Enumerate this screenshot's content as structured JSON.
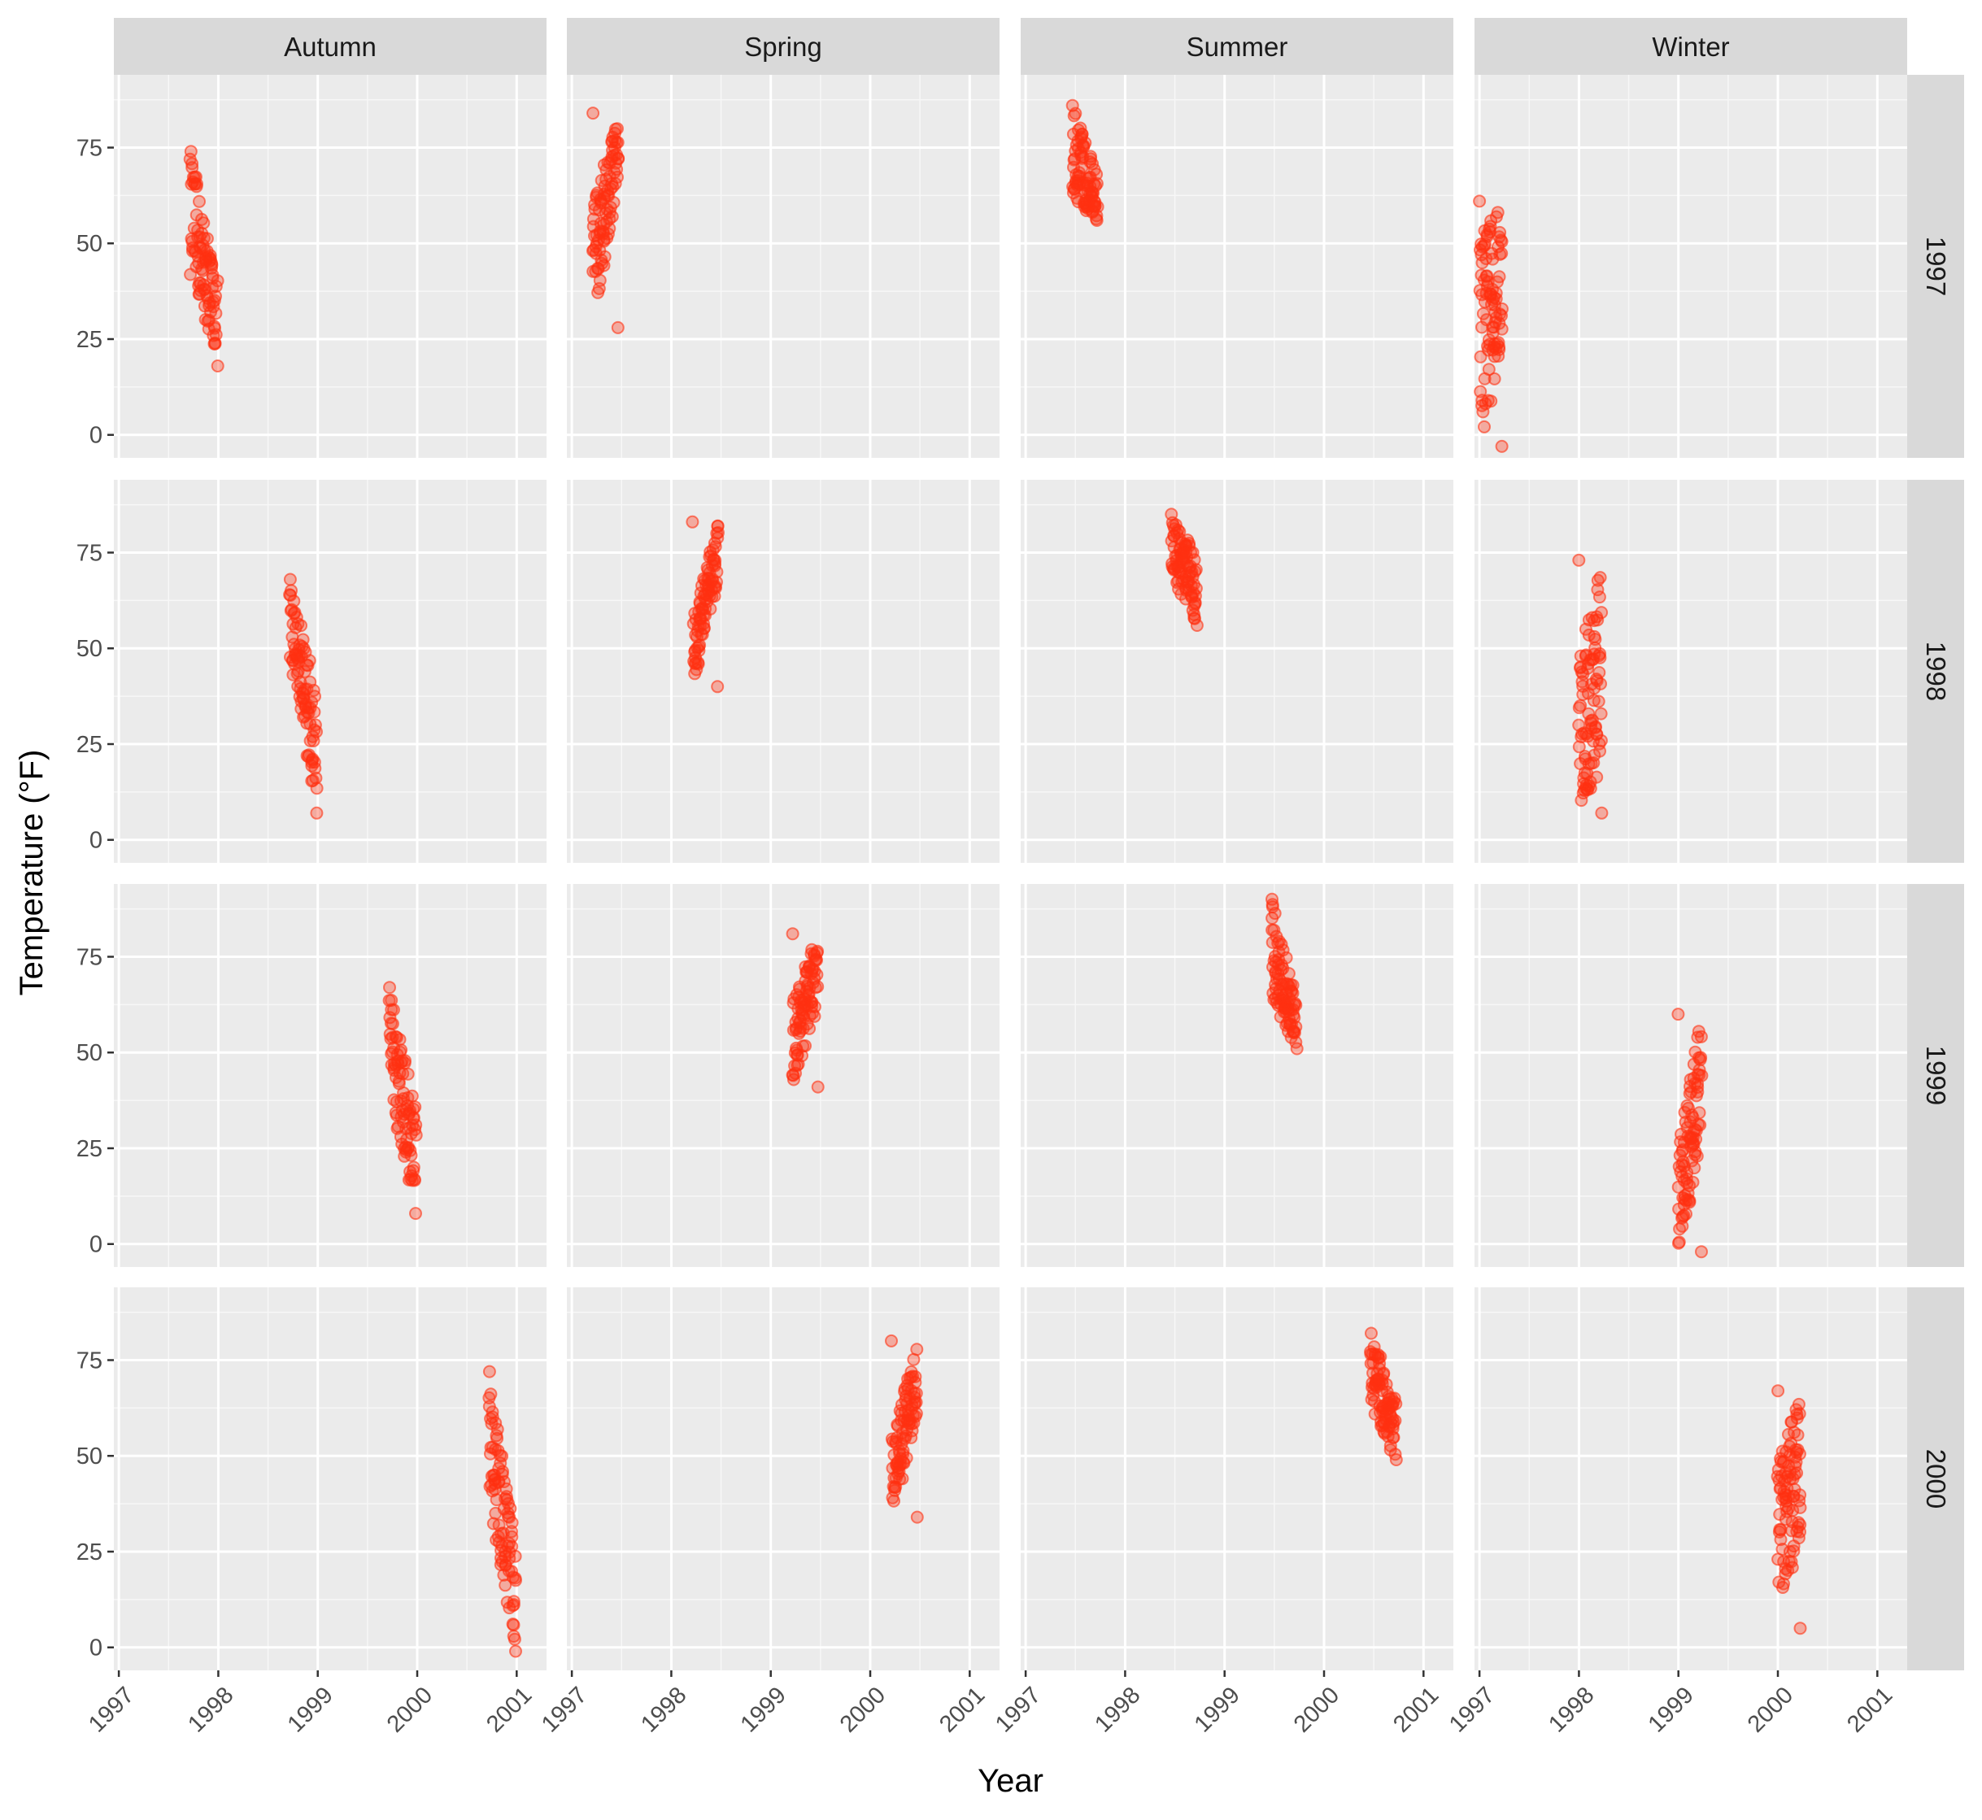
{
  "chart_data": {
    "type": "scatter",
    "xlabel": "Year",
    "ylabel": "Temperature (°F)",
    "facet_cols": [
      "Autumn",
      "Spring",
      "Summer",
      "Winter"
    ],
    "facet_rows": [
      "1997",
      "1998",
      "1999",
      "2000"
    ],
    "xlim": [
      1996.95,
      2001.3
    ],
    "ylim": [
      -6,
      94
    ],
    "x_ticks": [
      1997,
      1998,
      1999,
      2000,
      2001
    ],
    "x_tick_labels": [
      "1997",
      "1998",
      "1999",
      "2000",
      "2001"
    ],
    "y_ticks": [
      0,
      25,
      50,
      75
    ],
    "y_tick_labels": [
      "0",
      "25",
      "50",
      "75"
    ],
    "point_color": "#FF3010",
    "point_opacity": 0.35,
    "grid": true,
    "panels": [
      {
        "col": "Autumn",
        "row": "1997",
        "x_range": [
          1997.72,
          1997.99
        ],
        "y_start": [
          42,
          74
        ],
        "y_end": [
          20,
          40
        ],
        "y_min": 18,
        "y_max": 74
      },
      {
        "col": "Spring",
        "row": "1997",
        "x_range": [
          1997.21,
          1997.47
        ],
        "y_start": [
          28,
          62
        ],
        "y_end": [
          66,
          84
        ],
        "y_min": 28,
        "y_max": 84
      },
      {
        "col": "Summer",
        "row": "1997",
        "x_range": [
          1997.47,
          1997.72
        ],
        "y_start": [
          62,
          86
        ],
        "y_end": [
          56,
          68
        ],
        "y_min": 56,
        "y_max": 86
      },
      {
        "col": "Winter",
        "row": "1997",
        "x_range": [
          1997.0,
          1997.23
        ],
        "y_start": [
          -3,
          52
        ],
        "y_end": [
          20,
          61
        ],
        "y_min": -3,
        "y_max": 61
      },
      {
        "col": "Autumn",
        "row": "1998",
        "x_range": [
          1998.72,
          1998.99
        ],
        "y_start": [
          48,
          68
        ],
        "y_end": [
          7,
          40
        ],
        "y_min": 7,
        "y_max": 68
      },
      {
        "col": "Spring",
        "row": "1998",
        "x_range": [
          1998.22,
          1998.47
        ],
        "y_start": [
          40,
          58
        ],
        "y_end": [
          68,
          83
        ],
        "y_min": 40,
        "y_max": 83
      },
      {
        "col": "Summer",
        "row": "1998",
        "x_range": [
          1998.47,
          1998.72
        ],
        "y_start": [
          68,
          85
        ],
        "y_end": [
          56,
          75
        ],
        "y_min": 56,
        "y_max": 85
      },
      {
        "col": "Winter",
        "row": "1998",
        "x_range": [
          1998.0,
          1998.23
        ],
        "y_start": [
          7,
          48
        ],
        "y_end": [
          18,
          73
        ],
        "y_min": 7,
        "y_max": 73
      },
      {
        "col": "Autumn",
        "row": "1999",
        "x_range": [
          1999.72,
          1999.99
        ],
        "y_start": [
          40,
          66
        ],
        "y_end": [
          8,
          36
        ],
        "y_min": 8,
        "y_max": 67
      },
      {
        "col": "Spring",
        "row": "1999",
        "x_range": [
          1999.22,
          1999.47
        ],
        "y_start": [
          41,
          64
        ],
        "y_end": [
          62,
          81
        ],
        "y_min": 41,
        "y_max": 81
      },
      {
        "col": "Summer",
        "row": "1999",
        "x_range": [
          1999.47,
          1999.72
        ],
        "y_start": [
          64,
          90
        ],
        "y_end": [
          51,
          64
        ],
        "y_min": 51,
        "y_max": 90
      },
      {
        "col": "Winter",
        "row": "1999",
        "x_range": [
          1999.0,
          1999.23
        ],
        "y_start": [
          -2,
          30
        ],
        "y_end": [
          25,
          60
        ],
        "y_min": -2,
        "y_max": 60
      },
      {
        "col": "Autumn",
        "row": "2000",
        "x_range": [
          2000.72,
          2000.99
        ],
        "y_start": [
          38,
          72
        ],
        "y_end": [
          -1,
          28
        ],
        "y_min": -1,
        "y_max": 72
      },
      {
        "col": "Spring",
        "row": "2000",
        "x_range": [
          2000.22,
          2000.47
        ],
        "y_start": [
          34,
          55
        ],
        "y_end": [
          60,
          80
        ],
        "y_min": 34,
        "y_max": 80
      },
      {
        "col": "Summer",
        "row": "2000",
        "x_range": [
          2000.47,
          2000.72
        ],
        "y_start": [
          62,
          82
        ],
        "y_end": [
          49,
          66
        ],
        "y_min": 49,
        "y_max": 82
      },
      {
        "col": "Winter",
        "row": "2000",
        "x_range": [
          2000.0,
          2000.23
        ],
        "y_start": [
          5,
          48
        ],
        "y_end": [
          30,
          67
        ],
        "y_min": 5,
        "y_max": 67
      }
    ]
  }
}
